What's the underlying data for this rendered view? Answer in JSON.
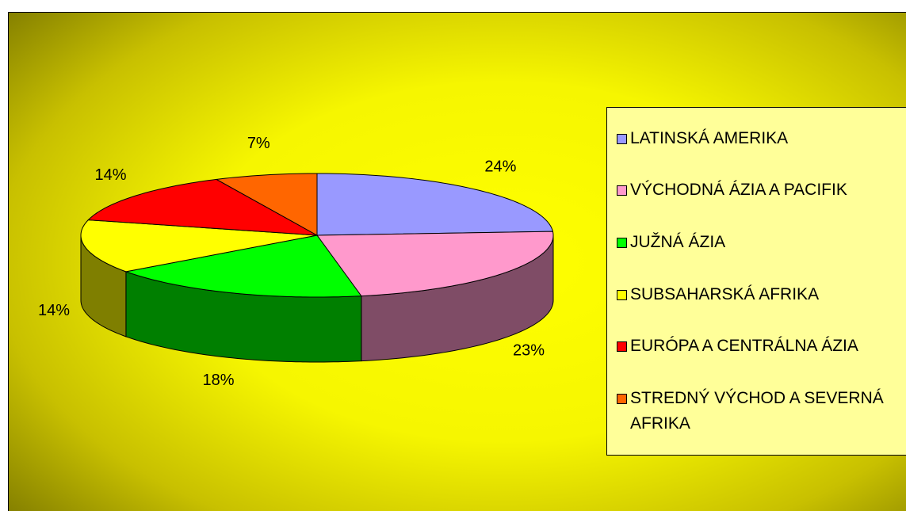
{
  "chart_data": {
    "type": "pie3d",
    "categories": [
      "LATINSKÁ AMERIKA",
      "VÝCHODNÁ ÁZIA A PACIFIK",
      "JUŽNÁ ÁZIA",
      "SUBSAHARSKÁ AFRIKA",
      "EURÓPA A CENTRÁLNA ÁZIA",
      "STREDNÝ VÝCHOD A SEVERNÁ AFRIKA"
    ],
    "values": [
      24,
      23,
      18,
      14,
      14,
      7
    ],
    "value_labels": [
      "24%",
      "23%",
      "18%",
      "14%",
      "14%",
      "7%"
    ],
    "colors": [
      "#9999ff",
      "#ff99cc",
      "#00ff00",
      "#ffff00",
      "#ff0000",
      "#ff6600"
    ],
    "legend": "right"
  }
}
